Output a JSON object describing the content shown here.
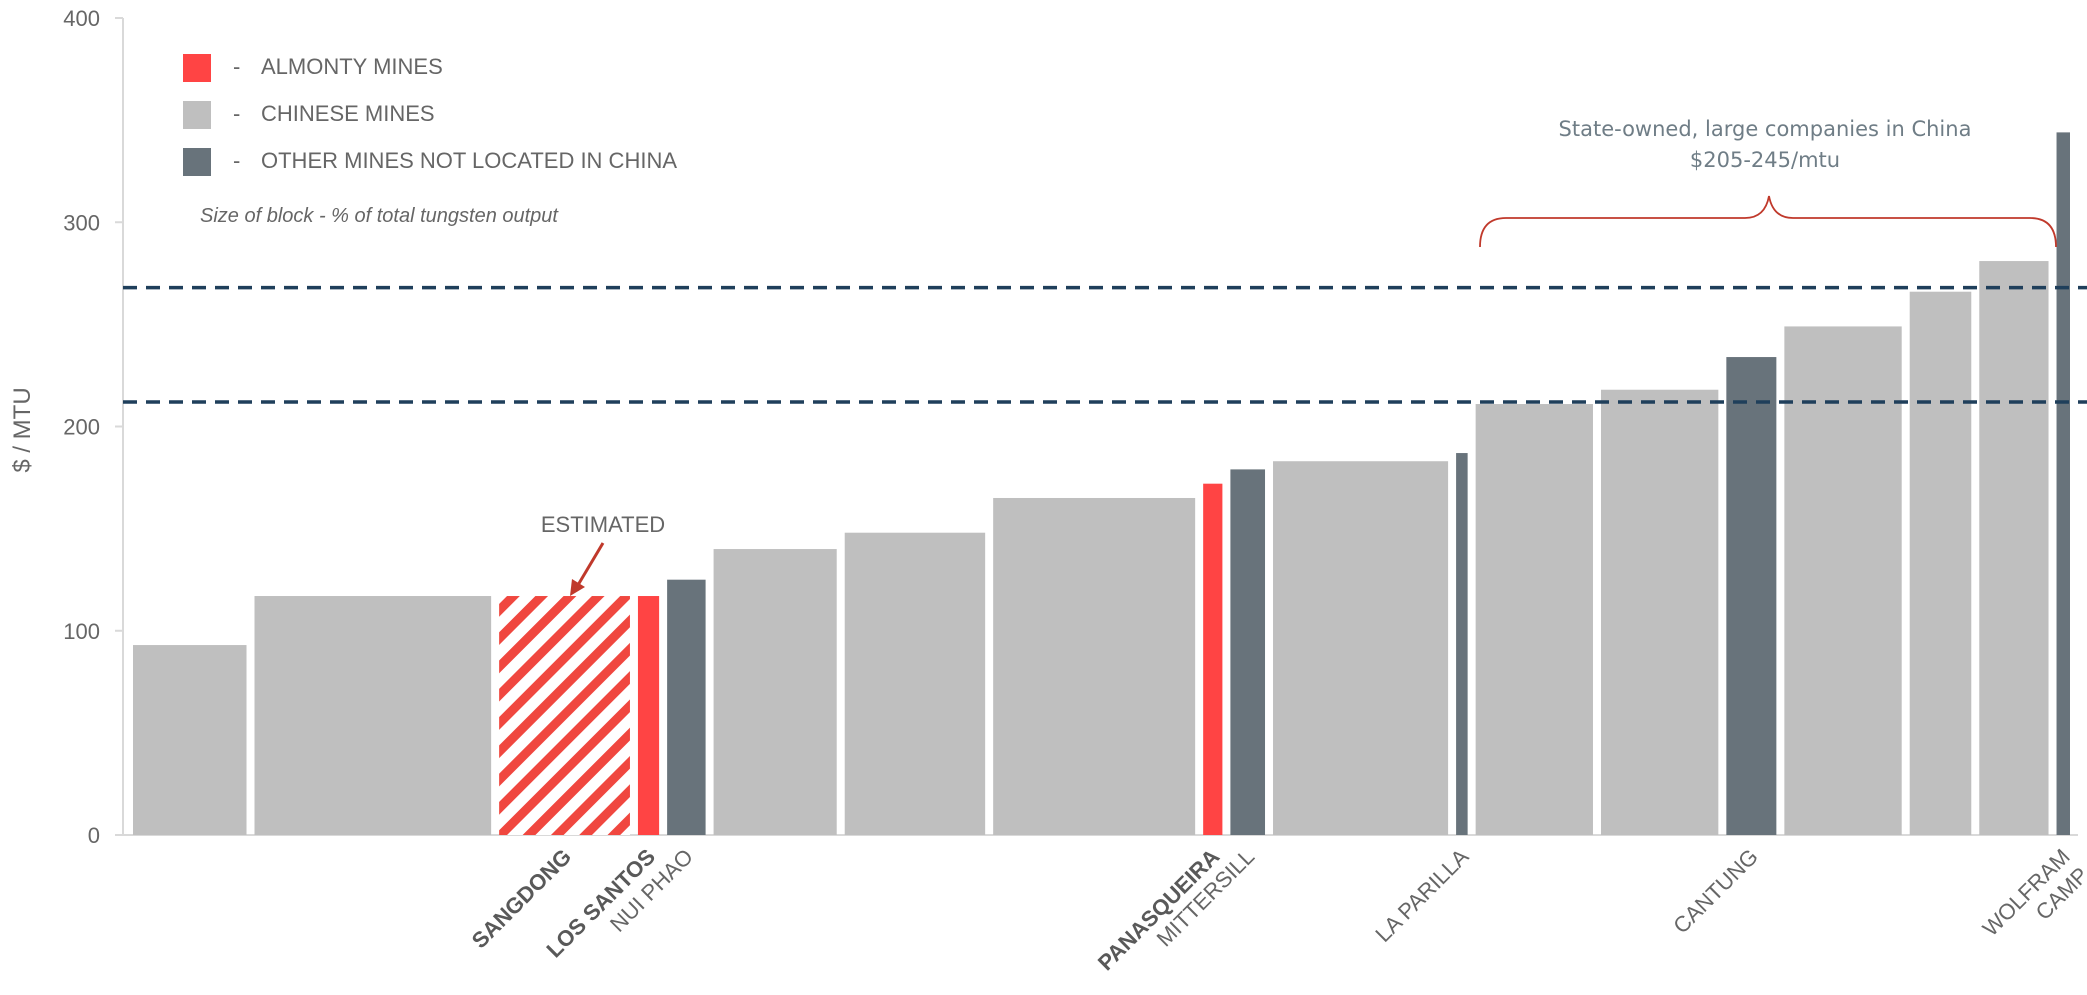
{
  "chart_data": {
    "type": "bar",
    "ylabel": "$ / MTU",
    "ylim": [
      0,
      400
    ],
    "yticks": [
      0,
      100,
      200,
      300,
      400
    ],
    "grid": false,
    "legend": {
      "placement": "top-left",
      "dash": "-",
      "entries": [
        {
          "key": "almonty",
          "label": "ALMONTY MINES",
          "color": "#ff4444"
        },
        {
          "key": "chinese",
          "label": "CHINESE MINES",
          "color": "#bfbfbf"
        },
        {
          "key": "other",
          "label": "OTHER MINES NOT LOCATED IN CHINA",
          "color": "#68737b"
        }
      ]
    },
    "note": "Size of block - % of total tungsten output",
    "estimated_label": "ESTIMATED",
    "bars": [
      {
        "label": "",
        "value": 93,
        "share": 5.9,
        "group": "chinese"
      },
      {
        "label": "",
        "value": 117,
        "share": 12.3,
        "group": "chinese"
      },
      {
        "label": "SANGDONG",
        "value": 117,
        "share": 6.8,
        "group": "almonty",
        "estimated": true,
        "label_bold": true
      },
      {
        "label": "LOS SANTOS",
        "value": 117,
        "share": 1.1,
        "group": "almonty",
        "label_bold": true
      },
      {
        "label": "NUI PHAO",
        "value": 125,
        "share": 2.0,
        "group": "other"
      },
      {
        "label": "",
        "value": 140,
        "share": 6.4,
        "group": "chinese"
      },
      {
        "label": "",
        "value": 148,
        "share": 7.3,
        "group": "chinese"
      },
      {
        "label": "",
        "value": 165,
        "share": 10.5,
        "group": "chinese"
      },
      {
        "label": "PANASQUEIRA",
        "value": 172,
        "share": 1.0,
        "group": "almonty",
        "label_bold": true
      },
      {
        "label": "MITTERSILL",
        "value": 179,
        "share": 1.8,
        "group": "other"
      },
      {
        "label": "",
        "value": 183,
        "share": 9.1,
        "group": "chinese"
      },
      {
        "label": "LA PARILLA",
        "value": 187,
        "share": 0.6,
        "group": "other"
      },
      {
        "label": "",
        "value": 211,
        "share": 6.1,
        "group": "chinese"
      },
      {
        "label": "",
        "value": 218,
        "share": 6.1,
        "group": "chinese"
      },
      {
        "label": "CANTUNG",
        "value": 234,
        "share": 2.6,
        "group": "other"
      },
      {
        "label": "",
        "value": 249,
        "share": 6.1,
        "group": "chinese"
      },
      {
        "label": "",
        "value": 266,
        "share": 3.2,
        "group": "chinese"
      },
      {
        "label": "",
        "value": 281,
        "share": 3.6,
        "group": "chinese"
      },
      {
        "label": "WOLFRAM CAMP",
        "value": 344,
        "share": 0.7,
        "group": "other"
      }
    ],
    "reference_lines": [
      {
        "value": 212,
        "style": "dashed",
        "color": "#1f3f5b"
      },
      {
        "value": 268,
        "style": "dashed",
        "color": "#1f3f5b"
      }
    ],
    "bracket": {
      "line1": "State-owned, large companies in China",
      "line2": "$205-245/mtu",
      "color": "#c0392b"
    }
  }
}
